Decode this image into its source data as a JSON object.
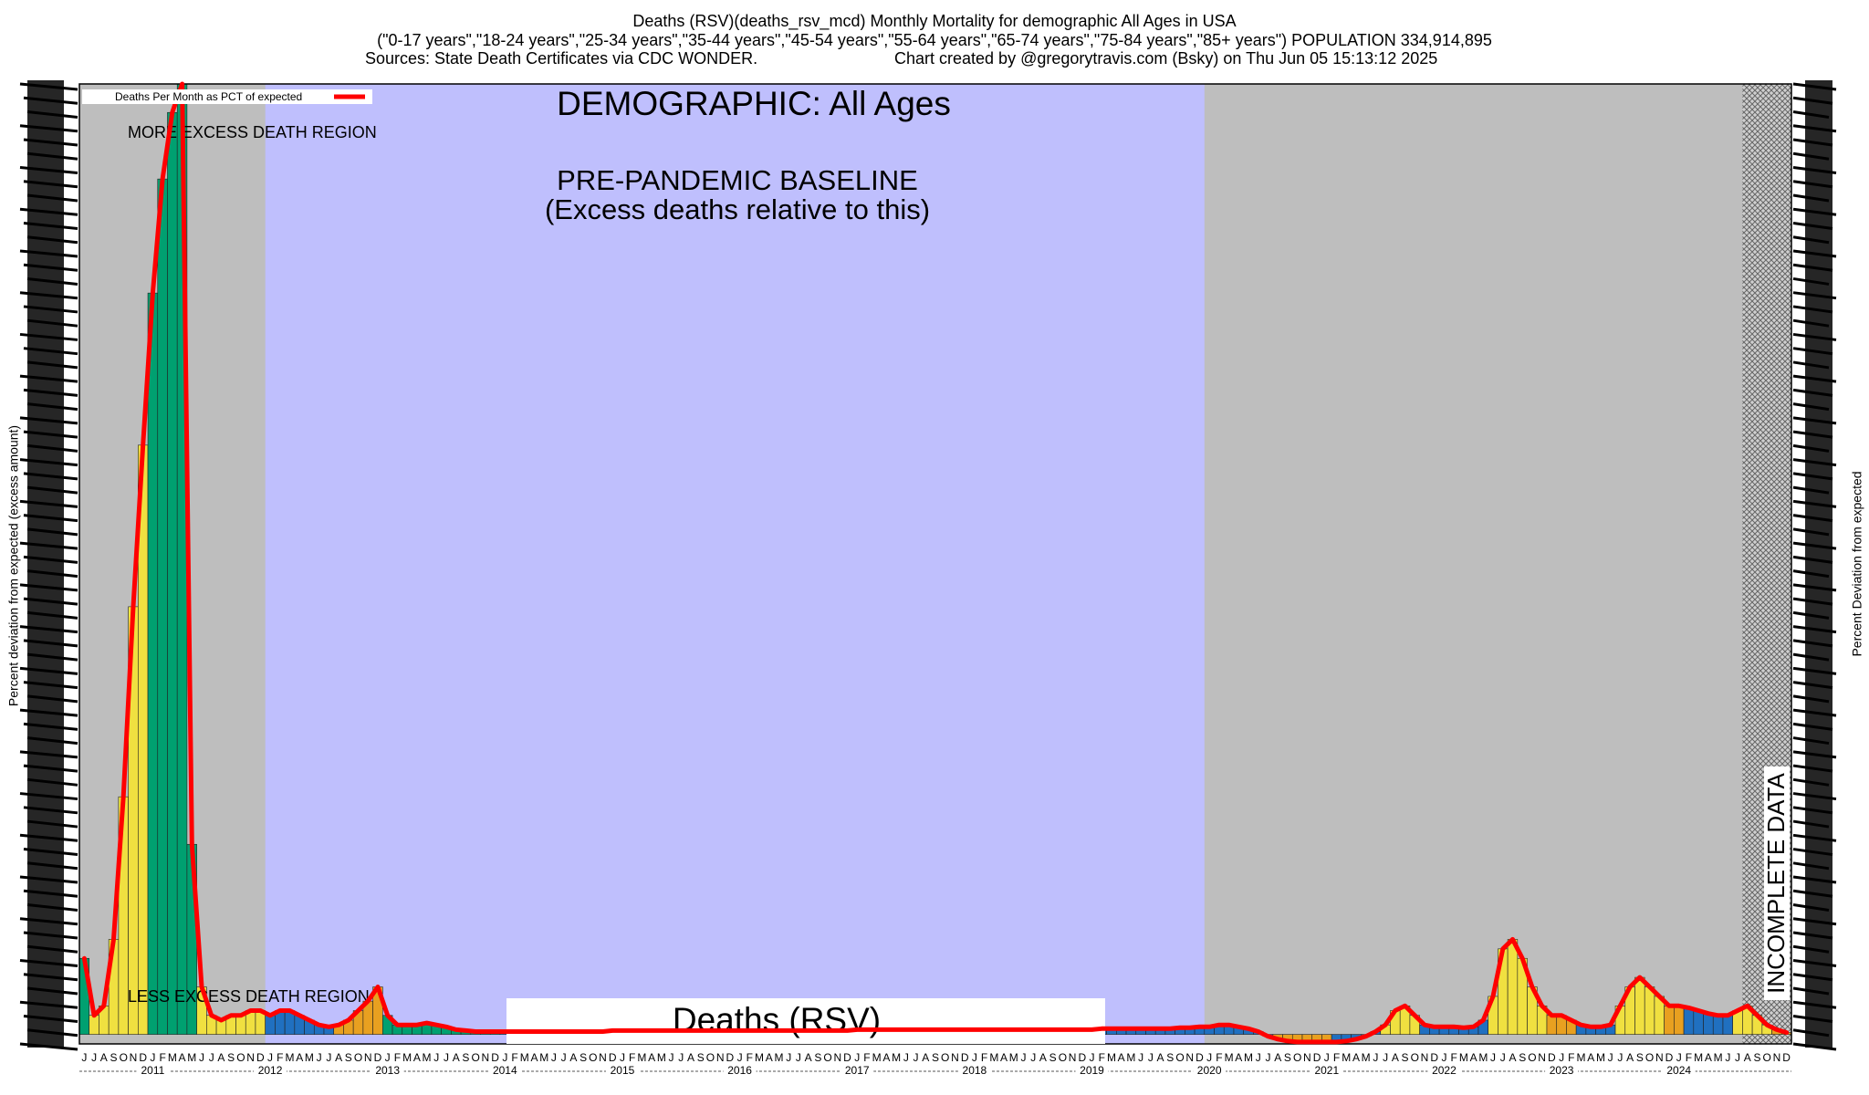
{
  "chart_data": {
    "type": "bar",
    "title": "Deaths (RSV)(deaths_rsv_mcd) Monthly Mortality for demographic All Ages in USA",
    "subtitle": "(\"0-17 years\",\"18-24 years\",\"25-34 years\",\"35-44 years\",\"45-54 years\",\"55-64 years\",\"65-74 years\",\"75-84 years\",\"85+ years\") POPULATION 334,914,895",
    "source": "Sources: State Death Certificates via CDC WONDER.",
    "credit": "Chart created by @gregorytravis.com (Bsky) on Thu Jun 05 15:13:12 2025",
    "ylabel": "Percent deviation from expected (excess amount)",
    "y2label": "Percent Deviation from expected",
    "demographic": "DEMOGRAPHIC: All Ages",
    "baseline_label": "PRE-PANDEMIC BASELINE",
    "baseline_note": "(Excess deaths relative to this)",
    "more_region": "MORE EXCESS DEATH REGION",
    "less_region": "LESS EXCESS DEATH REGION",
    "incomplete": "INCOMPLETE DATA",
    "cause": "Deaths (RSV)",
    "line_color": "#ff0000",
    "ylim": [
      -1,
      100
    ],
    "categories": [
      "J",
      "J",
      "A",
      "S",
      "O",
      "N",
      "D",
      "J",
      "F",
      "M",
      "A",
      "M",
      "J",
      "J",
      "A",
      "S",
      "O",
      "N",
      "D",
      "J",
      "F",
      "M",
      "A",
      "M",
      "J",
      "J",
      "A",
      "S",
      "O",
      "N",
      "D",
      "J",
      "F",
      "M",
      "A",
      "M",
      "J",
      "J",
      "A",
      "S",
      "O",
      "N",
      "D",
      "J",
      "F",
      "M",
      "A",
      "M",
      "J",
      "J",
      "A",
      "S",
      "O",
      "N",
      "D",
      "J",
      "F",
      "M",
      "A",
      "M",
      "J",
      "J",
      "A",
      "S",
      "O",
      "N",
      "D",
      "J",
      "F",
      "M",
      "A",
      "M",
      "J",
      "J",
      "A",
      "S",
      "O",
      "N",
      "D",
      "J",
      "F",
      "M",
      "A",
      "M",
      "J",
      "J",
      "A",
      "S",
      "O",
      "N",
      "D",
      "J",
      "F",
      "M",
      "A",
      "M",
      "J",
      "J",
      "A",
      "S",
      "O",
      "N",
      "D",
      "J",
      "F",
      "M",
      "A",
      "M",
      "J",
      "J",
      "A",
      "S",
      "O",
      "N",
      "D",
      "J",
      "F",
      "M",
      "A",
      "M",
      "J",
      "J",
      "A",
      "S",
      "O",
      "N",
      "D",
      "J",
      "F",
      "M",
      "A",
      "M",
      "J",
      "J",
      "A",
      "S",
      "O",
      "N",
      "D",
      "J",
      "F",
      "M",
      "A",
      "M",
      "J",
      "J",
      "A",
      "S",
      "O",
      "N",
      "D",
      "J",
      "F",
      "M",
      "A",
      "M",
      "J",
      "J",
      "A",
      "S",
      "O",
      "N",
      "D",
      "J",
      "F",
      "M",
      "A",
      "M",
      "J",
      "J",
      "A",
      "S",
      "O",
      "N",
      "D"
    ],
    "year_labels": [
      "2011",
      "2012",
      "2013",
      "2014",
      "2015",
      "2016",
      "2017",
      "2018",
      "2019",
      "2020",
      "2021",
      "2022",
      "2023",
      "2024"
    ],
    "series": [
      {
        "name": "Deaths Per Month as PCT of expected",
        "color": "#ff0000",
        "values": [
          8,
          2,
          3,
          10,
          25,
          45,
          62,
          78,
          90,
          97,
          100,
          20,
          5,
          2,
          1.5,
          2,
          2,
          2.5,
          2.5,
          2,
          2.5,
          2.5,
          2,
          1.5,
          1,
          0.8,
          1,
          1.5,
          2.5,
          3.5,
          5,
          2,
          1,
          1,
          1,
          1.2,
          1,
          0.8,
          0.5,
          0.4,
          0.3,
          0.3,
          0.3,
          0.3,
          0.3,
          0.3,
          0.3,
          0.3,
          0.3,
          0.3,
          0.3,
          0.3,
          0.3,
          0.3,
          0.4,
          0.4,
          0.4,
          0.4,
          0.4,
          0.4,
          0.4,
          0.4,
          0.4,
          0.4,
          0.4,
          0.4,
          0.4,
          0.4,
          0.4,
          0.4,
          0.4,
          0.4,
          0.4,
          0.4,
          0.4,
          0.4,
          0.4,
          0.4,
          0.4,
          0.5,
          0.5,
          0.5,
          0.5,
          0.5,
          0.5,
          0.5,
          0.5,
          0.5,
          0.5,
          0.5,
          0.5,
          0.5,
          0.5,
          0.5,
          0.5,
          0.5,
          0.5,
          0.5,
          0.5,
          0.5,
          0.5,
          0.5,
          0.5,
          0.5,
          0.6,
          0.6,
          0.6,
          0.6,
          0.6,
          0.6,
          0.6,
          0.6,
          0.7,
          0.7,
          0.8,
          0.8,
          1,
          1,
          0.8,
          0.6,
          0.3,
          -0.2,
          -0.5,
          -0.7,
          -0.8,
          -0.8,
          -0.8,
          -0.8,
          -0.8,
          -0.7,
          -0.5,
          -0.2,
          0.3,
          1,
          2.5,
          3,
          2,
          1,
          0.8,
          0.8,
          0.8,
          0.7,
          0.8,
          1.5,
          4,
          9,
          10,
          8,
          5,
          3,
          2,
          2,
          1.5,
          1,
          0.8,
          0.8,
          1,
          3,
          5,
          6,
          5,
          4,
          3,
          3,
          2.8,
          2.5,
          2.2,
          2,
          2,
          2.5,
          3,
          2,
          1,
          0.5,
          0.2
        ],
        "bar_colors": [
          "#00a070",
          "#f0e040",
          "#f0e040",
          "#f0e040",
          "#f0e040",
          "#f0e040",
          "#f0e040",
          "#00a070",
          "#00a070",
          "#00a070",
          "#00a070",
          "#00a070",
          "#f0e040",
          "#f0e040",
          "#f0e040",
          "#f0e040",
          "#f0e040",
          "#f0e040",
          "#f0e040",
          "#2070c0",
          "#2070c0",
          "#2070c0",
          "#2070c0",
          "#2070c0",
          "#2070c0",
          "#2070c0",
          "#e8a020",
          "#e8a020",
          "#e8a020",
          "#e8a020",
          "#e8a020",
          "#00a070",
          "#00a070",
          "#00a070",
          "#00a070",
          "#00a070",
          "#00a070",
          "#00a070",
          "#00a070",
          "#00a070",
          "#00a070",
          "#00a070",
          "#00a070",
          "#2070c0",
          "#2070c0",
          "#2070c0",
          "#2070c0",
          "#2070c0",
          "#2070c0",
          "#2070c0",
          "#2070c0",
          "#2070c0",
          "#2070c0",
          "#2070c0",
          "#2070c0",
          "#2070c0",
          "#2070c0",
          "#2070c0",
          "#2070c0",
          "#2070c0",
          "#2070c0",
          "#2070c0",
          "#2070c0",
          "#2070c0",
          "#2070c0",
          "#2070c0",
          "#2070c0",
          "#2070c0",
          "#2070c0",
          "#2070c0",
          "#2070c0",
          "#2070c0",
          "#2070c0",
          "#2070c0",
          "#2070c0",
          "#2070c0",
          "#2070c0",
          "#2070c0",
          "#2070c0",
          "#2070c0",
          "#2070c0",
          "#2070c0",
          "#2070c0",
          "#2070c0",
          "#2070c0",
          "#2070c0",
          "#2070c0",
          "#2070c0",
          "#2070c0",
          "#2070c0",
          "#2070c0",
          "#2070c0",
          "#2070c0",
          "#2070c0",
          "#2070c0",
          "#2070c0",
          "#2070c0",
          "#2070c0",
          "#2070c0",
          "#2070c0",
          "#2070c0",
          "#2070c0",
          "#2070c0",
          "#2070c0",
          "#2070c0",
          "#2070c0",
          "#2070c0",
          "#2070c0",
          "#2070c0",
          "#2070c0",
          "#2070c0",
          "#2070c0",
          "#2070c0",
          "#2070c0",
          "#2070c0",
          "#2070c0",
          "#2070c0",
          "#2070c0",
          "#2070c0",
          "#2070c0",
          "#2070c0",
          "#2070c0",
          "#e8a020",
          "#e8a020",
          "#e8a020",
          "#e8a020",
          "#e8a020",
          "#e8a020",
          "#2070c0",
          "#2070c0",
          "#2070c0",
          "#2070c0",
          "#2070c0",
          "#f0e040",
          "#f0e040",
          "#f0e040",
          "#f0e040",
          "#2070c0",
          "#2070c0",
          "#2070c0",
          "#2070c0",
          "#2070c0",
          "#2070c0",
          "#2070c0",
          "#f0e040",
          "#f0e040",
          "#f0e040",
          "#f0e040",
          "#f0e040",
          "#f0e040",
          "#e8a020",
          "#e8a020",
          "#e8a020",
          "#2070c0",
          "#2070c0",
          "#2070c0",
          "#2070c0",
          "#f0e040",
          "#f0e040",
          "#f0e040",
          "#f0e040",
          "#f0e040",
          "#e8a020",
          "#e8a020",
          "#2070c0",
          "#2070c0",
          "#2070c0",
          "#2070c0",
          "#2070c0",
          "#f0e040",
          "#f0e040",
          "#f0e040",
          "#f0e040",
          "#e8a020",
          "#e8a020"
        ]
      }
    ]
  }
}
